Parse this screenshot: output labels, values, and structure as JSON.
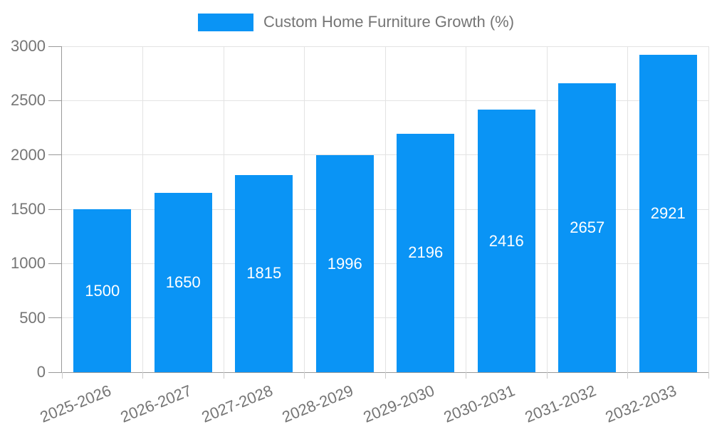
{
  "chart_data": {
    "type": "bar",
    "title": "Custom Home Furniture Growth (%)",
    "categories": [
      "2025-2026",
      "2026-2027",
      "2027-2028",
      "2028-2029",
      "2029-2030",
      "2030-2031",
      "2031-2032",
      "2032-2033"
    ],
    "values": [
      1500,
      1650,
      1815,
      1996,
      2196,
      2416,
      2657,
      2921
    ],
    "xlabel": "",
    "ylabel": "",
    "ylim": [
      0,
      3000
    ],
    "y_ticks": [
      0,
      500,
      1000,
      1500,
      2000,
      2500,
      3000
    ],
    "grid": true,
    "legend_position": "top",
    "colors": {
      "bar": "#0a94f5",
      "value_label": "#ffffff",
      "axis_text": "#757575",
      "grid_line": "#e3e3e3",
      "axis_line": "#999999",
      "x_tick": "#cccccc"
    }
  }
}
